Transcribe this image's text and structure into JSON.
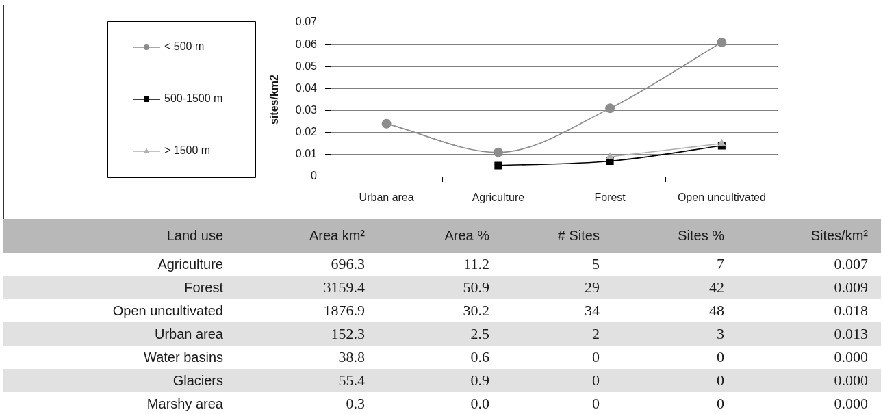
{
  "chart_data": [
    {
      "type": "line",
      "ylabel": "sites/km2",
      "categories": [
        "Urban area",
        "Agriculture",
        "Forest",
        "Open uncultivated"
      ],
      "series": [
        {
          "name": "< 500 m",
          "color": "#8c8c8c",
          "marker": "circle",
          "values": [
            0.024,
            0.011,
            0.031,
            0.061
          ]
        },
        {
          "name": "500-1500 m",
          "color": "#000000",
          "marker": "square",
          "values": [
            null,
            0.005,
            0.007,
            0.014
          ]
        },
        {
          "name": "> 1500 m",
          "color": "#b0b0b0",
          "marker": "triangle",
          "values": [
            null,
            null,
            0.009,
            0.015
          ]
        }
      ],
      "ylim": [
        0,
        0.07
      ],
      "yticks": [
        0,
        0.01,
        0.02,
        0.03,
        0.04,
        0.05,
        0.06,
        0.07
      ],
      "grid": "y",
      "legend": "left"
    },
    {
      "type": "other",
      "categories": [
        "Land use",
        "Area km²",
        "Area %",
        "# Sites",
        "Sites %",
        "Sites/km²"
      ],
      "y_categories": [
        "Agriculture",
        "Forest",
        "Open uncultivated",
        "Urban area",
        "Water basins",
        "Glaciers",
        "Marshy area"
      ],
      "cell_labels": [
        [
          "696.3",
          "11.2",
          "5",
          "7",
          "0.007"
        ],
        [
          "3159.4",
          "50.9",
          "29",
          "42",
          "0.009"
        ],
        [
          "1876.9",
          "30.2",
          "34",
          "48",
          "0.018"
        ],
        [
          "152.3",
          "2.5",
          "2",
          "3",
          "0.013"
        ],
        [
          "38.8",
          "0.6",
          "0",
          "0",
          "0.000"
        ],
        [
          "55.4",
          "0.9",
          "0",
          "0",
          "0.000"
        ],
        [
          "0.3",
          "0.0",
          "0",
          "0",
          "0.000"
        ]
      ]
    }
  ]
}
